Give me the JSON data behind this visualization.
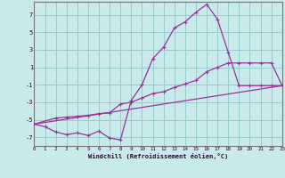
{
  "background_color": "#c8eaea",
  "grid_color": "#99cccc",
  "line_color": "#993399",
  "spine_color": "#777777",
  "xlabel": "Windchill (Refroidissement éolien,°C)",
  "xlim": [
    0,
    23
  ],
  "ylim": [
    -8,
    8.5
  ],
  "xticks": [
    0,
    1,
    2,
    3,
    4,
    5,
    6,
    7,
    8,
    9,
    10,
    11,
    12,
    13,
    14,
    15,
    16,
    17,
    18,
    19,
    20,
    21,
    22,
    23
  ],
  "yticks": [
    -7,
    -5,
    -3,
    -1,
    1,
    3,
    5,
    7
  ],
  "line1_x": [
    0,
    1,
    2,
    3,
    4,
    5,
    6,
    7,
    8,
    9,
    10,
    11,
    12,
    13,
    14,
    15,
    16,
    17,
    18,
    19,
    20,
    21,
    22,
    23
  ],
  "line1_y": [
    -5.5,
    -5.8,
    -6.4,
    -6.7,
    -6.5,
    -6.8,
    -6.3,
    -7.1,
    -7.3,
    -2.8,
    -1.0,
    2.0,
    3.3,
    5.5,
    6.2,
    7.3,
    8.2,
    6.5,
    2.7,
    -1.1,
    -1.1,
    -1.1,
    -1.1,
    -1.1
  ],
  "line2_x": [
    0,
    2,
    3,
    4,
    5,
    6,
    7,
    8,
    9,
    10,
    11,
    12,
    13,
    14,
    15,
    16,
    17,
    18,
    19,
    20,
    21,
    22,
    23
  ],
  "line2_y": [
    -5.5,
    -4.8,
    -4.7,
    -4.6,
    -4.5,
    -4.3,
    -4.2,
    -3.2,
    -3.0,
    -2.5,
    -2.0,
    -1.8,
    -1.3,
    -0.9,
    -0.5,
    0.5,
    1.0,
    1.5,
    1.5,
    1.5,
    1.5,
    1.5,
    -1.1
  ],
  "line3_x": [
    0,
    23
  ],
  "line3_y": [
    -5.5,
    -1.1
  ]
}
